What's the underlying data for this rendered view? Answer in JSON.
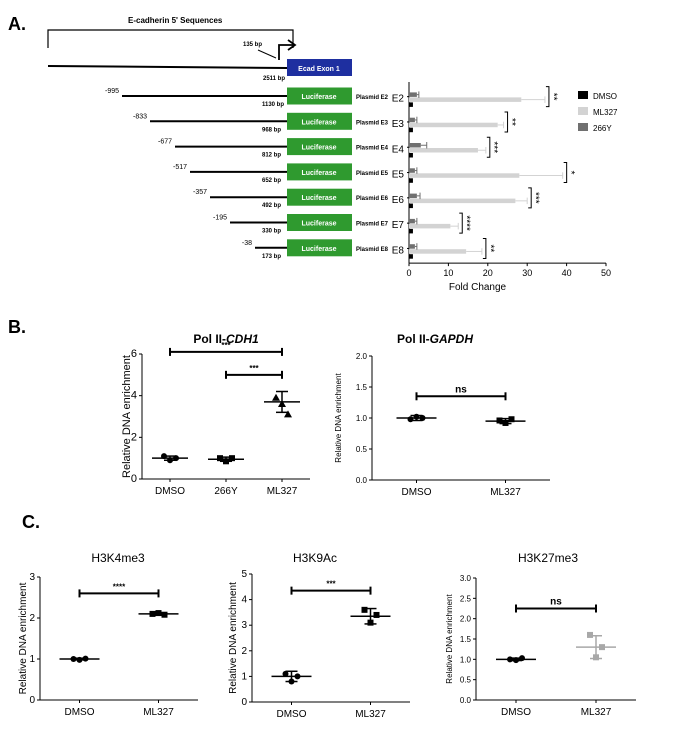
{
  "panel_labels": {
    "a": "A.",
    "b": "B.",
    "c": "C."
  },
  "promoter": {
    "bracket_label": "E-cadherin 5' Sequences",
    "tss_label": "135 bp",
    "exon_label": "Ecad Exon 1",
    "full_length_label": "2511 bp",
    "luciferase_label": "Luciferase",
    "constructs": [
      {
        "start": "-995",
        "bp": "1130 bp",
        "plasmid": "Plasmid E2"
      },
      {
        "start": "-833",
        "bp": "968 bp",
        "plasmid": "Plasmid E3"
      },
      {
        "start": "-677",
        "bp": "812 bp",
        "plasmid": "Plasmid E4"
      },
      {
        "start": "-517",
        "bp": "652 bp",
        "plasmid": "Plasmid E5"
      },
      {
        "start": "-357",
        "bp": "492 bp",
        "plasmid": "Plasmid E6"
      },
      {
        "start": "-195",
        "bp": "330 bp",
        "plasmid": "Plasmid E7"
      },
      {
        "start": "-38",
        "bp": "173 bp",
        "plasmid": "Plasmid E8"
      }
    ]
  },
  "colors": {
    "dmso": "#000000",
    "ml327": "#d3d3d3",
    "y266": "#707070",
    "exon": "#1e2fa0",
    "luciferase": "#2f9a2f",
    "b_ml327": "#333333",
    "c_ml327_k27": "#a8a8a8"
  },
  "chart_data": [
    {
      "id": "A",
      "type": "bar",
      "orientation": "horizontal",
      "categories": [
        "E2",
        "E3",
        "E4",
        "E5",
        "E6",
        "E7",
        "E8"
      ],
      "series": [
        {
          "name": "DMSO",
          "values": [
            1,
            1,
            1,
            1,
            1,
            1,
            1
          ]
        },
        {
          "name": "ML327",
          "values": [
            28.5,
            22.5,
            17.5,
            28,
            27,
            10.5,
            14.5
          ],
          "errors": [
            6,
            1.5,
            2,
            11,
            3,
            2,
            4
          ]
        },
        {
          "name": "266Y",
          "values": [
            2,
            1.5,
            3,
            1.5,
            2,
            1.5,
            1.5
          ],
          "errors": [
            0.5,
            0.5,
            1.5,
            0.5,
            0.8,
            0.5,
            0.5
          ]
        }
      ],
      "significance": [
        "**",
        "**",
        "***",
        "*",
        "***",
        "****",
        "**"
      ],
      "xlabel": "Fold Change",
      "xlim": [
        0,
        50
      ],
      "xticks": [
        0,
        10,
        20,
        30,
        40,
        50
      ],
      "legend": "right"
    },
    {
      "id": "B1",
      "type": "scatter",
      "title_prefix": "Pol II-",
      "title_gene": "CDH1",
      "ylabel": "Relative DNA enrichment",
      "categories": [
        "DMSO",
        "266Y",
        "ML327"
      ],
      "ylim": [
        0,
        6
      ],
      "yticks": [
        0,
        2,
        4,
        6
      ],
      "groups": [
        {
          "name": "DMSO",
          "marker": "circle",
          "points": [
            1.1,
            0.9,
            1.0
          ],
          "mean": 1.0,
          "sd": 0.1
        },
        {
          "name": "266Y",
          "marker": "square",
          "points": [
            1.0,
            0.85,
            1.0
          ],
          "mean": 0.95,
          "sd": 0.1
        },
        {
          "name": "ML327",
          "marker": "triangle",
          "points": [
            3.9,
            3.6,
            3.1
          ],
          "mean": 3.7,
          "sd": 0.5
        }
      ],
      "comparisons": [
        {
          "from": "DMSO",
          "to": "ML327",
          "label": "***",
          "y": 6.1
        },
        {
          "from": "266Y",
          "to": "ML327",
          "label": "***",
          "y": 5.0
        }
      ]
    },
    {
      "id": "B2",
      "type": "scatter",
      "title_prefix": "Pol II-",
      "title_gene": "GAPDH",
      "ylabel": "Relative DNA enrichment",
      "categories": [
        "DMSO",
        "ML327"
      ],
      "ylim": [
        0,
        2.0
      ],
      "yticks": [
        0.0,
        0.5,
        1.0,
        1.5,
        2.0
      ],
      "groups": [
        {
          "name": "DMSO",
          "marker": "circle",
          "points": [
            0.98,
            1.02,
            1.0
          ],
          "mean": 1.0,
          "sd": 0.04
        },
        {
          "name": "ML327",
          "marker": "square",
          "points": [
            0.96,
            0.92,
            0.98
          ],
          "mean": 0.95,
          "sd": 0.04
        }
      ],
      "comparisons": [
        {
          "from": "DMSO",
          "to": "ML327",
          "label": "ns",
          "y": 1.35
        }
      ]
    },
    {
      "id": "C1",
      "type": "scatter",
      "title": "H3K4me3",
      "ylabel": "Relative DNA enrichment",
      "categories": [
        "DMSO",
        "ML327"
      ],
      "ylim": [
        0,
        3
      ],
      "yticks": [
        0,
        1,
        2,
        3
      ],
      "groups": [
        {
          "name": "DMSO",
          "marker": "circle",
          "points": [
            1.0,
            0.98,
            1.01
          ],
          "mean": 1.0,
          "sd": 0.02
        },
        {
          "name": "ML327",
          "marker": "square",
          "points": [
            2.1,
            2.12,
            2.08
          ],
          "mean": 2.1,
          "sd": 0.02
        }
      ],
      "comparisons": [
        {
          "from": "DMSO",
          "to": "ML327",
          "label": "****",
          "y": 2.6
        }
      ]
    },
    {
      "id": "C2",
      "type": "scatter",
      "title": "H3K9Ac",
      "ylabel": "Relative DNA enrichment",
      "categories": [
        "DMSO",
        "ML327"
      ],
      "ylim": [
        0,
        5
      ],
      "yticks": [
        0,
        1,
        2,
        3,
        4,
        5
      ],
      "groups": [
        {
          "name": "DMSO",
          "marker": "circle",
          "points": [
            1.1,
            0.8,
            1.0
          ],
          "mean": 1.0,
          "sd": 0.2
        },
        {
          "name": "ML327",
          "marker": "square",
          "points": [
            3.6,
            3.1,
            3.4
          ],
          "mean": 3.35,
          "sd": 0.3
        }
      ],
      "comparisons": [
        {
          "from": "DMSO",
          "to": "ML327",
          "label": "***",
          "y": 4.35
        }
      ]
    },
    {
      "id": "C3",
      "type": "scatter",
      "title": "H3K27me3",
      "ylabel": "Relative DNA enrichment",
      "categories": [
        "DMSO",
        "ML327"
      ],
      "ylim": [
        0,
        3.0
      ],
      "yticks": [
        0.0,
        0.5,
        1.0,
        1.5,
        2.0,
        2.5,
        3.0
      ],
      "groups": [
        {
          "name": "DMSO",
          "marker": "circle",
          "points": [
            1.0,
            0.98,
            1.03
          ],
          "mean": 1.0,
          "sd": 0.03
        },
        {
          "name": "ML327",
          "marker": "square",
          "points": [
            1.6,
            1.05,
            1.3
          ],
          "mean": 1.3,
          "sd": 0.28
        }
      ],
      "comparisons": [
        {
          "from": "DMSO",
          "to": "ML327",
          "label": "ns",
          "y": 2.25
        }
      ]
    }
  ]
}
